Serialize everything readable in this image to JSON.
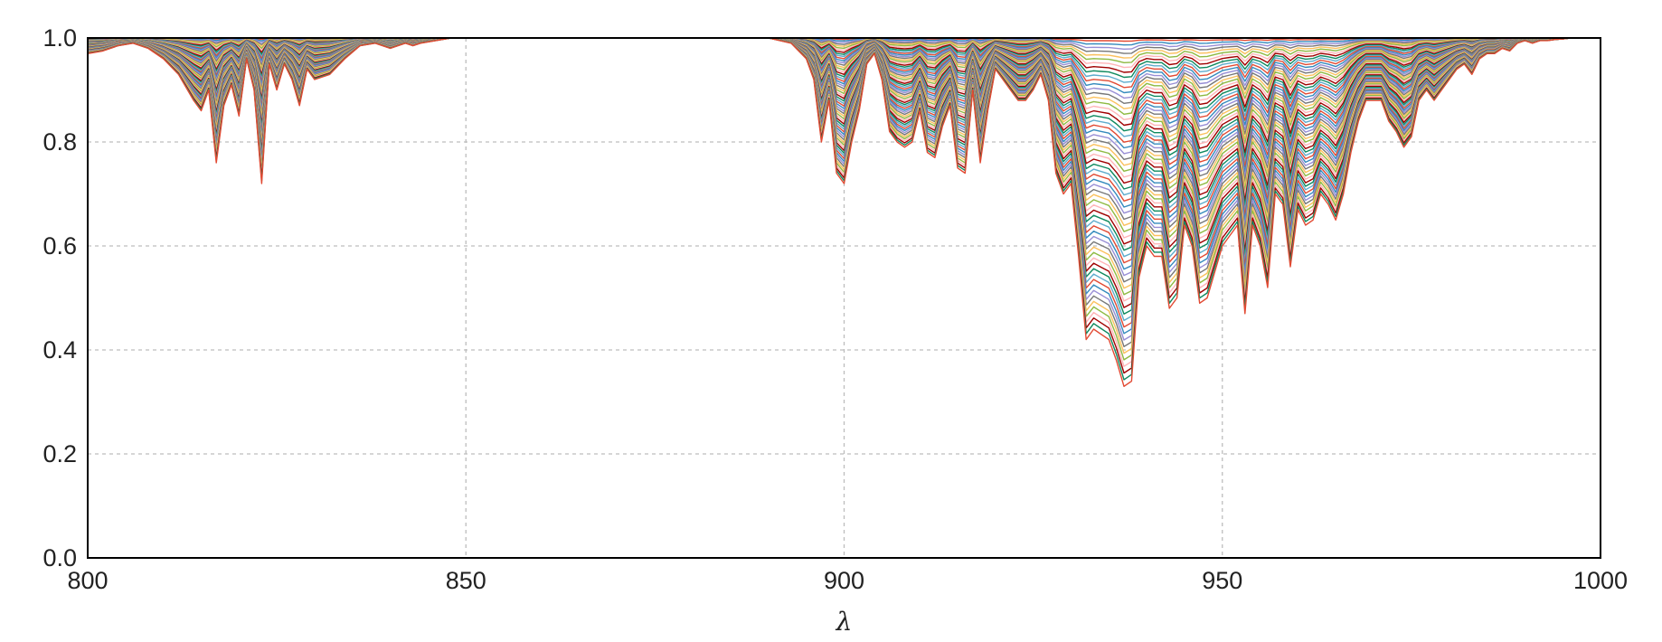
{
  "chart_data": {
    "type": "line",
    "title": "",
    "xlabel": "λ",
    "ylabel": "",
    "xlim": [
      800,
      1000
    ],
    "ylim": [
      0,
      1.0
    ],
    "grid": true,
    "legend": "none",
    "x_ticks": [
      800,
      850,
      900,
      950,
      1000
    ],
    "x_tick_labels": [
      "800",
      "850",
      "900",
      "950",
      "1000"
    ],
    "y_ticks": [
      0.0,
      0.2,
      0.4,
      0.6,
      0.8,
      1.0
    ],
    "y_tick_labels": [
      "0.0",
      "0.2",
      "0.4",
      "0.6",
      "0.8",
      "1.0"
    ],
    "series_count": 60,
    "series_colors": [
      "#e24a33",
      "#348abd",
      "#988ed5",
      "#777777",
      "#fbc15e",
      "#8eba42",
      "#ffb5b8",
      "#a00000",
      "#0f8a5f",
      "#5eaccd"
    ],
    "reference_spectrum": {
      "x": [
        800,
        802,
        804,
        806,
        808,
        810,
        812,
        814,
        815,
        816,
        817,
        818,
        819,
        820,
        821,
        822,
        823,
        824,
        825,
        826,
        827,
        828,
        829,
        830,
        832,
        834,
        836,
        838,
        840,
        842,
        843,
        844,
        846,
        848,
        850,
        855,
        860,
        865,
        870,
        875,
        880,
        885,
        890,
        893,
        895,
        896,
        897,
        898,
        899,
        900,
        901,
        902,
        903,
        904,
        905,
        906,
        907,
        908,
        909,
        910,
        911,
        912,
        913,
        914,
        915,
        916,
        917,
        918,
        919,
        920,
        921,
        922,
        923,
        924,
        925,
        926,
        927,
        928,
        929,
        930,
        931,
        932,
        933,
        934,
        935,
        936,
        937,
        938,
        939,
        940,
        941,
        942,
        943,
        944,
        945,
        946,
        947,
        948,
        949,
        950,
        951,
        952,
        953,
        954,
        955,
        956,
        957,
        958,
        959,
        960,
        961,
        962,
        963,
        964,
        965,
        966,
        967,
        968,
        969,
        970,
        971,
        972,
        973,
        974,
        975,
        976,
        977,
        978,
        979,
        980,
        981,
        982,
        983,
        984,
        985,
        986,
        987,
        988,
        989,
        990,
        991,
        992,
        993,
        994,
        995,
        996,
        997,
        998,
        999,
        1000
      ],
      "y": [
        0.97,
        0.975,
        0.985,
        0.99,
        0.98,
        0.96,
        0.93,
        0.88,
        0.86,
        0.9,
        0.76,
        0.87,
        0.91,
        0.85,
        0.96,
        0.9,
        0.72,
        0.95,
        0.9,
        0.95,
        0.92,
        0.87,
        0.94,
        0.92,
        0.93,
        0.96,
        0.985,
        0.99,
        0.98,
        0.99,
        0.985,
        0.99,
        0.995,
        1.0,
        1.0,
        1.0,
        1.0,
        1.0,
        1.0,
        1.0,
        1.0,
        1.0,
        1.0,
        0.99,
        0.96,
        0.92,
        0.8,
        0.88,
        0.74,
        0.72,
        0.8,
        0.86,
        0.95,
        0.97,
        0.92,
        0.82,
        0.8,
        0.79,
        0.8,
        0.86,
        0.78,
        0.77,
        0.83,
        0.87,
        0.75,
        0.74,
        0.9,
        0.76,
        0.86,
        0.94,
        0.92,
        0.9,
        0.88,
        0.88,
        0.9,
        0.93,
        0.88,
        0.74,
        0.7,
        0.72,
        0.58,
        0.42,
        0.44,
        0.43,
        0.42,
        0.38,
        0.33,
        0.34,
        0.54,
        0.6,
        0.58,
        0.58,
        0.48,
        0.5,
        0.64,
        0.6,
        0.49,
        0.5,
        0.55,
        0.6,
        0.62,
        0.64,
        0.47,
        0.64,
        0.6,
        0.52,
        0.7,
        0.68,
        0.56,
        0.67,
        0.64,
        0.65,
        0.7,
        0.68,
        0.65,
        0.7,
        0.78,
        0.84,
        0.88,
        0.88,
        0.88,
        0.84,
        0.82,
        0.79,
        0.81,
        0.88,
        0.9,
        0.88,
        0.9,
        0.92,
        0.94,
        0.95,
        0.93,
        0.96,
        0.97,
        0.97,
        0.98,
        0.975,
        0.99,
        0.995,
        0.99,
        0.995,
        0.995,
        0.997,
        0.998,
        1.0,
        1.0,
        1.0,
        1.0,
        1.0
      ]
    }
  }
}
